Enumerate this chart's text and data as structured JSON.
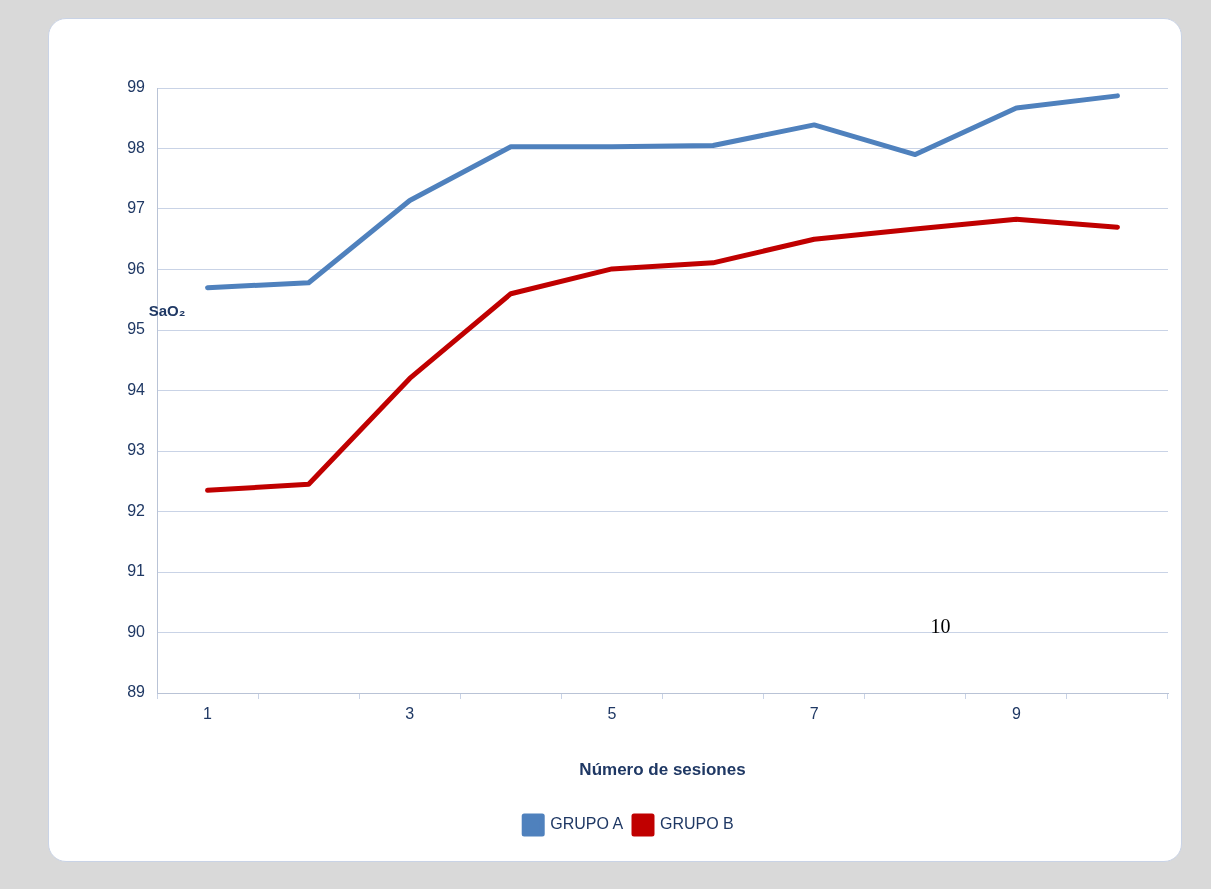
{
  "chart_data": {
    "type": "line",
    "xlabel": "Número de sesiones",
    "ylabel": "SaO₂",
    "annotations": [
      "10"
    ],
    "categories": [
      "1",
      null,
      "3",
      null,
      "5",
      null,
      "7",
      null,
      "9",
      null
    ],
    "series": [
      {
        "name": "GRUPO A",
        "color": "#4f81bd",
        "values": [
          95.7,
          95.78,
          97.14,
          98.03,
          98.03,
          98.05,
          98.39,
          97.9,
          98.67,
          98.87
        ]
      },
      {
        "name": "GRUPO B",
        "color": "#c00000",
        "values": [
          92.35,
          92.45,
          94.2,
          95.6,
          96.01,
          96.11,
          96.5,
          96.67,
          96.83,
          96.7
        ]
      }
    ],
    "ylim": [
      89,
      99
    ],
    "yticks": [
      89,
      90,
      91,
      92,
      93,
      94,
      95,
      96,
      97,
      98,
      99
    ],
    "grid": "y",
    "legend": "bottom",
    "marker": "none",
    "line_style": "solid"
  }
}
